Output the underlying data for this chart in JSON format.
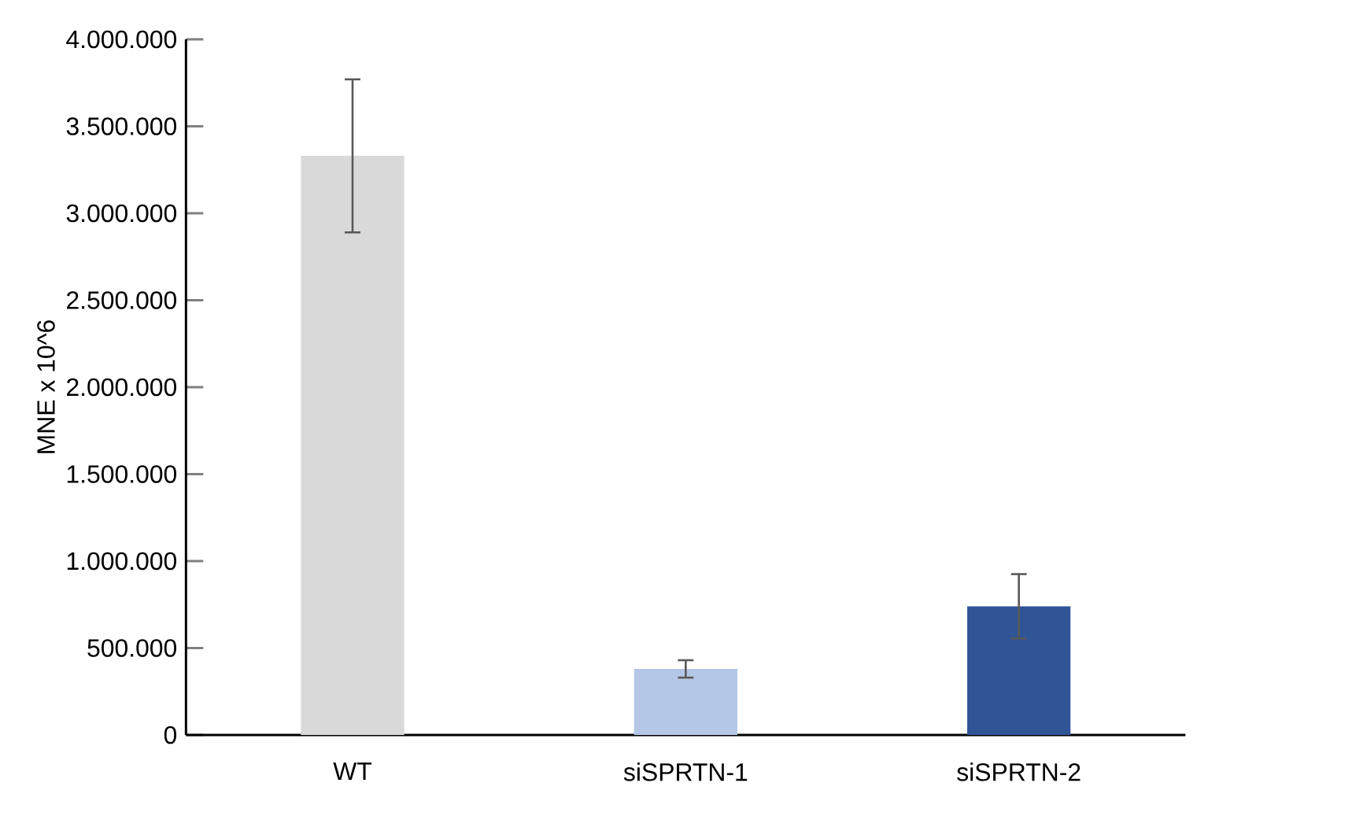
{
  "chart_data": {
    "type": "bar",
    "ylabel": "MNE x 10^6",
    "categories": [
      "WT",
      "siSPRTN-1",
      "siSPRTN-2"
    ],
    "values": [
      3330000,
      380000,
      740000
    ],
    "errors": [
      440000,
      50000,
      185000
    ],
    "colors": [
      "#d9d9d9",
      "#b4c7e7",
      "#2f5597"
    ],
    "ylim": [
      0,
      4000000
    ],
    "yticks": [
      {
        "value": 0,
        "label": "0"
      },
      {
        "value": 500000,
        "label": "500.000"
      },
      {
        "value": 1000000,
        "label": "1.000.000"
      },
      {
        "value": 1500000,
        "label": "1.500.000"
      },
      {
        "value": 2000000,
        "label": "2.000.000"
      },
      {
        "value": 2500000,
        "label": "2.500.000"
      },
      {
        "value": 3000000,
        "label": "3.000.000"
      },
      {
        "value": 3500000,
        "label": "3.500.000"
      },
      {
        "value": 4000000,
        "label": "4.000.000"
      }
    ]
  }
}
